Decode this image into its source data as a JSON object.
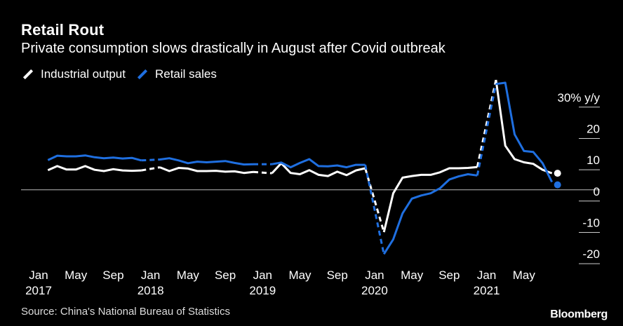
{
  "title": "Retail Rout",
  "subtitle": "Private consumption slows drastically in August after Covid outbreak",
  "source": "Source: China's National Bureau of Statistics",
  "brand": "Bloomberg",
  "colors": {
    "industrial": "#ffffff",
    "retail": "#1f6fe0",
    "background": "#000000"
  },
  "chart_data": {
    "type": "line",
    "title": "Retail Rout",
    "subtitle": "Private consumption slows drastically in August after Covid outbreak",
    "unit_label": "30% y/y",
    "ylim": [
      -24,
      36
    ],
    "yticks": [
      -20,
      -10,
      0,
      10,
      20,
      30
    ],
    "ytick_labels": [
      "-20",
      "-10",
      "0",
      "10",
      "20",
      "30% y/y"
    ],
    "xlim": [
      "2017-01",
      "2021-09"
    ],
    "xtick_labels": [
      {
        "month": "Jan",
        "year": "2017",
        "date": "2017-01"
      },
      {
        "month": "May",
        "year": "",
        "date": "2017-05"
      },
      {
        "month": "Sep",
        "year": "",
        "date": "2017-09"
      },
      {
        "month": "Jan",
        "year": "2018",
        "date": "2018-01"
      },
      {
        "month": "May",
        "year": "",
        "date": "2018-05"
      },
      {
        "month": "Sep",
        "year": "",
        "date": "2018-09"
      },
      {
        "month": "Jan",
        "year": "2019",
        "date": "2019-01"
      },
      {
        "month": "May",
        "year": "",
        "date": "2019-05"
      },
      {
        "month": "Sep",
        "year": "",
        "date": "2019-09"
      },
      {
        "month": "Jan",
        "year": "2020",
        "date": "2020-01"
      },
      {
        "month": "May",
        "year": "",
        "date": "2020-05"
      },
      {
        "month": "Sep",
        "year": "",
        "date": "2020-09"
      },
      {
        "month": "Jan",
        "year": "2021",
        "date": "2021-01"
      },
      {
        "month": "May",
        "year": "",
        "date": "2021-05"
      }
    ],
    "legend_placement": "top-left",
    "grid": false,
    "series": [
      {
        "name": "Industrial output",
        "color": "#ffffff",
        "points": [
          [
            "2017-02",
            6.3
          ],
          [
            "2017-03",
            7.6
          ],
          [
            "2017-04",
            6.5
          ],
          [
            "2017-05",
            6.5
          ],
          [
            "2017-06",
            7.6
          ],
          [
            "2017-07",
            6.4
          ],
          [
            "2017-08",
            6.0
          ],
          [
            "2017-09",
            6.6
          ],
          [
            "2017-10",
            6.2
          ],
          [
            "2017-11",
            6.1
          ],
          [
            "2017-12",
            6.2
          ],
          [
            "2018-02",
            7.2
          ],
          [
            "2018-03",
            6.0
          ],
          [
            "2018-04",
            7.0
          ],
          [
            "2018-05",
            6.8
          ],
          [
            "2018-06",
            6.0
          ],
          [
            "2018-07",
            6.0
          ],
          [
            "2018-08",
            6.1
          ],
          [
            "2018-09",
            5.8
          ],
          [
            "2018-10",
            5.9
          ],
          [
            "2018-11",
            5.4
          ],
          [
            "2018-12",
            5.7
          ],
          [
            "2019-02",
            5.3
          ],
          [
            "2019-03",
            8.5
          ],
          [
            "2019-04",
            5.4
          ],
          [
            "2019-05",
            5.0
          ],
          [
            "2019-06",
            6.3
          ],
          [
            "2019-07",
            4.8
          ],
          [
            "2019-08",
            4.4
          ],
          [
            "2019-09",
            5.8
          ],
          [
            "2019-10",
            4.7
          ],
          [
            "2019-11",
            6.2
          ],
          [
            "2019-12",
            6.9
          ],
          [
            "2020-02",
            -13.5
          ],
          [
            "2020-03",
            -1.1
          ],
          [
            "2020-04",
            3.9
          ],
          [
            "2020-05",
            4.4
          ],
          [
            "2020-06",
            4.8
          ],
          [
            "2020-07",
            4.8
          ],
          [
            "2020-08",
            5.6
          ],
          [
            "2020-09",
            6.9
          ],
          [
            "2020-10",
            6.9
          ],
          [
            "2020-11",
            7.0
          ],
          [
            "2020-12",
            7.3
          ],
          [
            "2021-02",
            35.1
          ],
          [
            "2021-03",
            14.1
          ],
          [
            "2021-04",
            9.8
          ],
          [
            "2021-05",
            8.8
          ],
          [
            "2021-06",
            8.3
          ],
          [
            "2021-07",
            6.4
          ],
          [
            "2021-08",
            5.3
          ]
        ]
      },
      {
        "name": "Retail sales",
        "color": "#1f6fe0",
        "points": [
          [
            "2017-02",
            9.5
          ],
          [
            "2017-03",
            10.9
          ],
          [
            "2017-04",
            10.7
          ],
          [
            "2017-05",
            10.7
          ],
          [
            "2017-06",
            11.0
          ],
          [
            "2017-07",
            10.4
          ],
          [
            "2017-08",
            10.1
          ],
          [
            "2017-09",
            10.3
          ],
          [
            "2017-10",
            10.0
          ],
          [
            "2017-11",
            10.2
          ],
          [
            "2017-12",
            9.4
          ],
          [
            "2018-02",
            9.7
          ],
          [
            "2018-03",
            10.1
          ],
          [
            "2018-04",
            9.4
          ],
          [
            "2018-05",
            8.5
          ],
          [
            "2018-06",
            9.0
          ],
          [
            "2018-07",
            8.8
          ],
          [
            "2018-08",
            9.0
          ],
          [
            "2018-09",
            9.2
          ],
          [
            "2018-10",
            8.6
          ],
          [
            "2018-11",
            8.1
          ],
          [
            "2018-12",
            8.2
          ],
          [
            "2019-02",
            8.2
          ],
          [
            "2019-03",
            8.7
          ],
          [
            "2019-04",
            7.2
          ],
          [
            "2019-05",
            8.6
          ],
          [
            "2019-06",
            9.8
          ],
          [
            "2019-07",
            7.6
          ],
          [
            "2019-08",
            7.5
          ],
          [
            "2019-09",
            7.8
          ],
          [
            "2019-10",
            7.2
          ],
          [
            "2019-11",
            8.0
          ],
          [
            "2019-12",
            8.0
          ],
          [
            "2020-02",
            -20.5
          ],
          [
            "2020-03",
            -15.8
          ],
          [
            "2020-04",
            -7.5
          ],
          [
            "2020-05",
            -2.8
          ],
          [
            "2020-06",
            -1.8
          ],
          [
            "2020-07",
            -1.1
          ],
          [
            "2020-08",
            0.5
          ],
          [
            "2020-09",
            3.3
          ],
          [
            "2020-10",
            4.3
          ],
          [
            "2020-11",
            5.0
          ],
          [
            "2020-12",
            4.6
          ],
          [
            "2021-02",
            33.8
          ],
          [
            "2021-03",
            34.2
          ],
          [
            "2021-04",
            17.7
          ],
          [
            "2021-05",
            12.4
          ],
          [
            "2021-06",
            12.1
          ],
          [
            "2021-07",
            8.5
          ],
          [
            "2021-08",
            2.5
          ]
        ]
      }
    ]
  }
}
